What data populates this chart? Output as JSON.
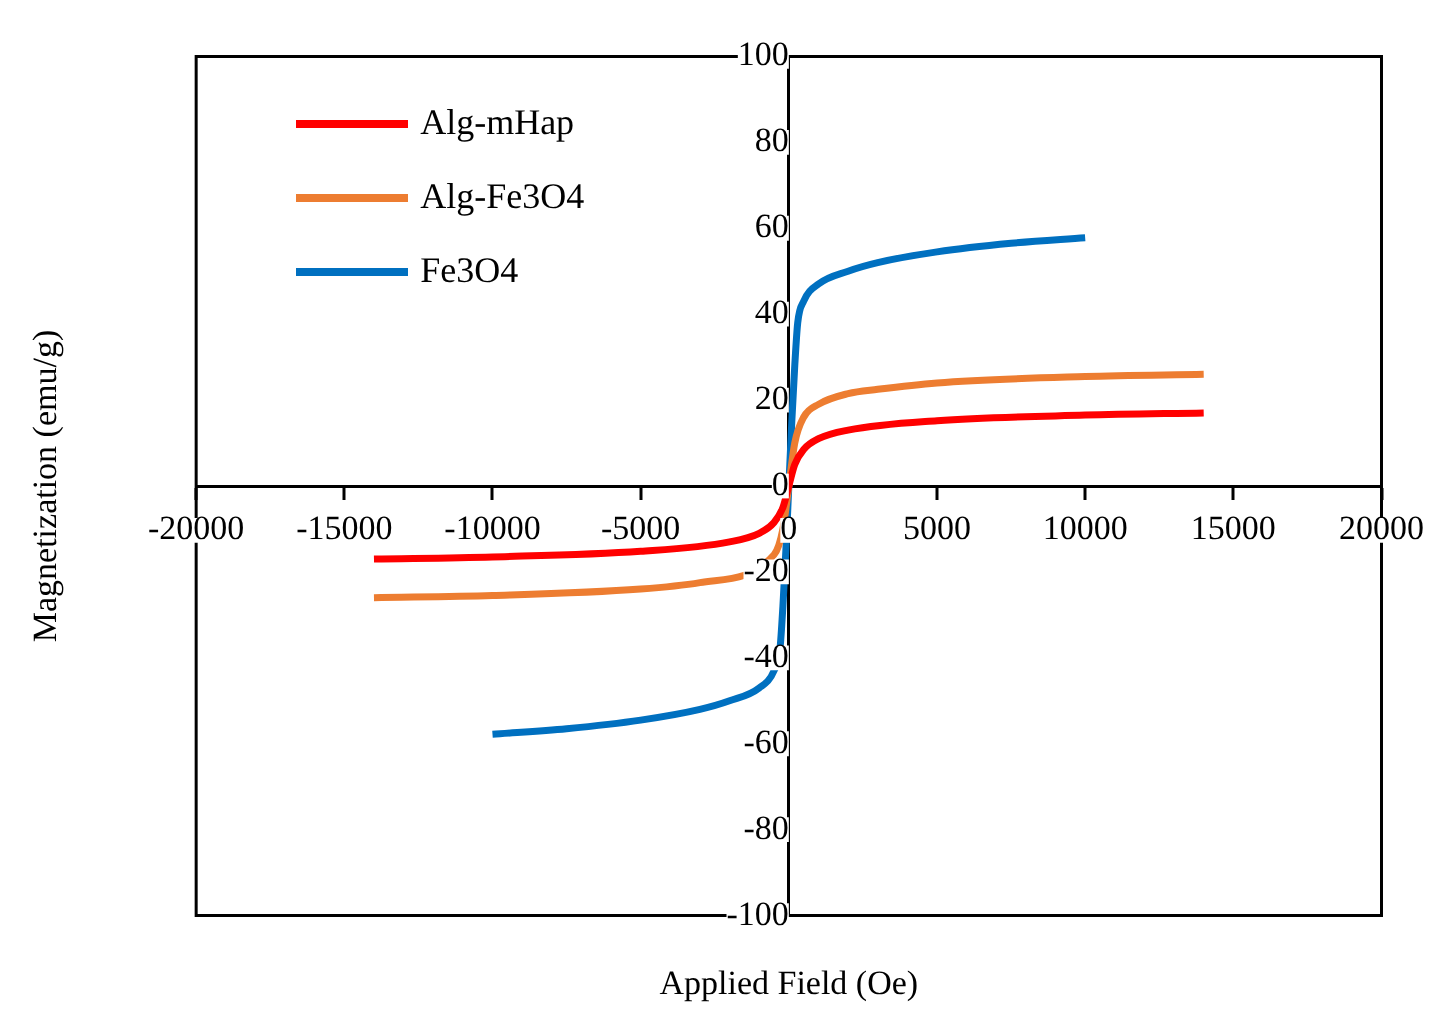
{
  "chart_data": {
    "type": "line",
    "xlabel": "Applied Field (Oe)",
    "ylabel": "Magnetization (emu/g)",
    "xlim": [
      -20000,
      20000
    ],
    "xticks": [
      -20000,
      -15000,
      -10000,
      -5000,
      0,
      5000,
      10000,
      15000,
      20000
    ],
    "ylim": [
      -100,
      100
    ],
    "yticks": [
      -100,
      -80,
      -60,
      -40,
      -20,
      0,
      20,
      40,
      60,
      80,
      100
    ],
    "grid": false,
    "legend": "top left",
    "marker": "none",
    "line_style": "solid",
    "series": [
      {
        "name": "Alg-mHap",
        "color": "#ff0000",
        "x": [
          -14000,
          -10000,
          -5000,
          -2000,
          -1000,
          -500,
          -200,
          0,
          200,
          500,
          1000,
          2000,
          5000,
          10000,
          14000
        ],
        "values": [
          -17,
          -16.5,
          -15.2,
          -13,
          -11,
          -8.5,
          -5,
          0,
          5,
          8.5,
          11,
          13,
          15.2,
          16.5,
          17
        ]
      },
      {
        "name": "Alg-Fe3O4",
        "color": "#ed7d31",
        "x": [
          -14000,
          -10000,
          -5000,
          -3000,
          -500,
          -200,
          0,
          200,
          500,
          1000,
          2000,
          3000,
          5000,
          10000,
          14000
        ],
        "values": [
          -26,
          -25.5,
          -24,
          -22.5,
          -16,
          -10,
          0,
          10,
          16,
          19,
          21.5,
          22.5,
          24,
          25.5,
          26
        ]
      },
      {
        "name": "Fe3O4",
        "color": "#0070c0",
        "x": [
          -10000,
          -7500,
          -5000,
          -3000,
          -2000,
          -1000,
          -500,
          -300,
          -200,
          -100,
          0,
          100,
          200,
          300,
          500,
          1000,
          2000,
          3000,
          5000,
          7500,
          10000
        ],
        "values": [
          -57.8,
          -56.5,
          -54.5,
          -52,
          -50,
          -47,
          -43,
          -38,
          -28,
          -15,
          0,
          15,
          28,
          38,
          43,
          47,
          50,
          52,
          54.5,
          56.5,
          57.8
        ]
      }
    ]
  }
}
